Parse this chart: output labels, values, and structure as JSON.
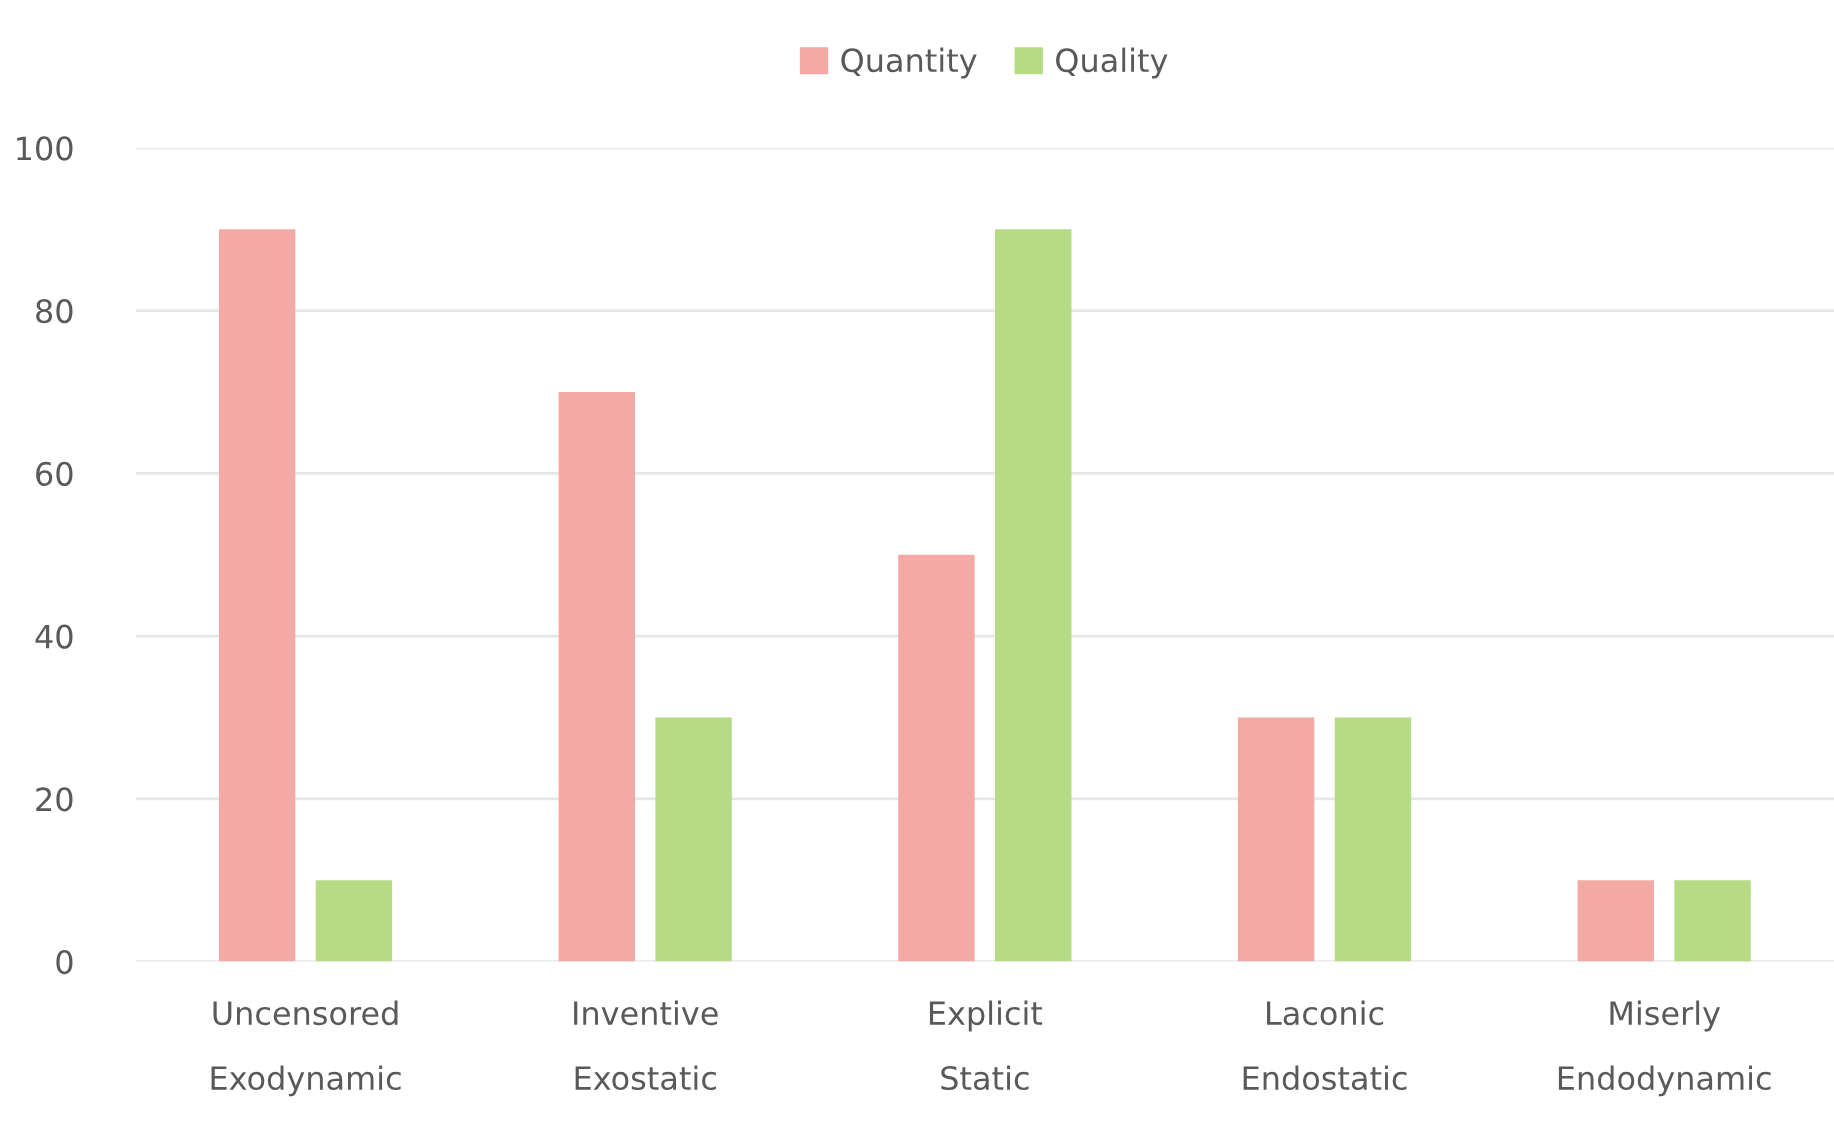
{
  "chart_data": {
    "type": "bar",
    "categories": [
      "Uncensored\nExodynamic",
      "Inventive\nExostatic",
      "Explicit\nStatic",
      "Laconic\nEndostatic",
      "Miserly\nEndodynamic"
    ],
    "series": [
      {
        "name": "Quantity",
        "color": "#f4aaa4",
        "values": [
          90,
          70,
          50,
          30,
          10
        ]
      },
      {
        "name": "Quality",
        "color": "#b5dc85",
        "values": [
          10,
          30,
          90,
          30,
          10
        ]
      }
    ],
    "ylim": [
      0,
      100
    ],
    "yticks": [
      0,
      20,
      40,
      60,
      80,
      100
    ],
    "grid": "y",
    "legend": "top"
  }
}
